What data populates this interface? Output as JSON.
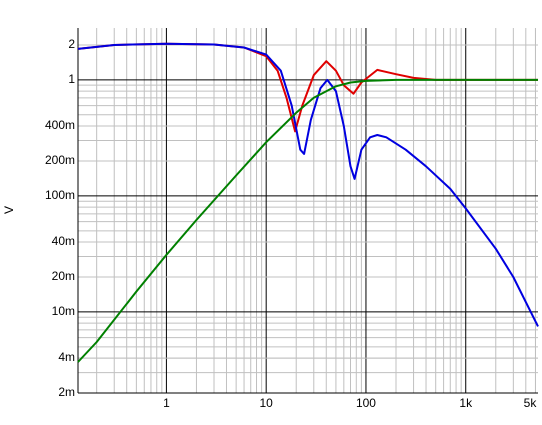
{
  "chart_data": {
    "type": "line",
    "y_label": "V",
    "xscale": "log",
    "yscale": "log",
    "grid": true,
    "minor_grid": true,
    "xlim": [
      0.13,
      5300
    ],
    "ylim": [
      0.002,
      2.8
    ],
    "xticks": [
      1,
      10,
      100,
      {
        "value": 1000,
        "label": "1k"
      },
      {
        "value": 5000,
        "label": "5k"
      }
    ],
    "yticks": [
      2,
      1,
      {
        "value": 0.4,
        "label": "400m"
      },
      {
        "value": 0.2,
        "label": "200m"
      },
      {
        "value": 0.1,
        "label": "100m"
      },
      {
        "value": 0.04,
        "label": "40m"
      },
      {
        "value": 0.02,
        "label": "20m"
      },
      {
        "value": 0.01,
        "label": "10m"
      },
      {
        "value": 0.004,
        "label": "4m"
      },
      {
        "value": 0.002,
        "label": "2m"
      }
    ],
    "series": [
      {
        "color": "#e00000",
        "x": [
          0.13,
          0.3,
          1,
          3,
          6,
          10,
          13,
          16,
          19.5,
          23,
          30,
          40,
          50,
          60,
          75,
          90,
          130,
          200,
          300,
          500,
          5300
        ],
        "values": [
          1.85,
          2.0,
          2.05,
          2.02,
          1.9,
          1.6,
          1.2,
          0.7,
          0.36,
          0.6,
          1.1,
          1.45,
          1.2,
          0.9,
          0.76,
          0.95,
          1.22,
          1.12,
          1.04,
          1.0,
          1.0
        ]
      },
      {
        "color": "#0000e0",
        "x": [
          0.13,
          0.3,
          1,
          3,
          6,
          10,
          14,
          18,
          22,
          24,
          28,
          35,
          41,
          50,
          60,
          70,
          77,
          90,
          110,
          130,
          160,
          250,
          400,
          700,
          1000,
          2000,
          3000,
          5300
        ],
        "values": [
          1.85,
          2.0,
          2.05,
          2.02,
          1.9,
          1.65,
          1.2,
          0.6,
          0.25,
          0.23,
          0.45,
          0.85,
          1.0,
          0.8,
          0.4,
          0.18,
          0.14,
          0.25,
          0.32,
          0.335,
          0.32,
          0.25,
          0.18,
          0.115,
          0.078,
          0.035,
          0.02,
          0.0075
        ]
      },
      {
        "color": "#008000",
        "x": [
          0.13,
          0.2,
          0.5,
          1,
          2,
          5,
          10,
          20,
          30,
          50,
          70,
          100,
          200,
          1000,
          5300
        ],
        "values": [
          0.0037,
          0.0055,
          0.015,
          0.031,
          0.062,
          0.15,
          0.29,
          0.52,
          0.7,
          0.88,
          0.95,
          0.98,
          1.0,
          1.0,
          1.0
        ]
      }
    ]
  }
}
